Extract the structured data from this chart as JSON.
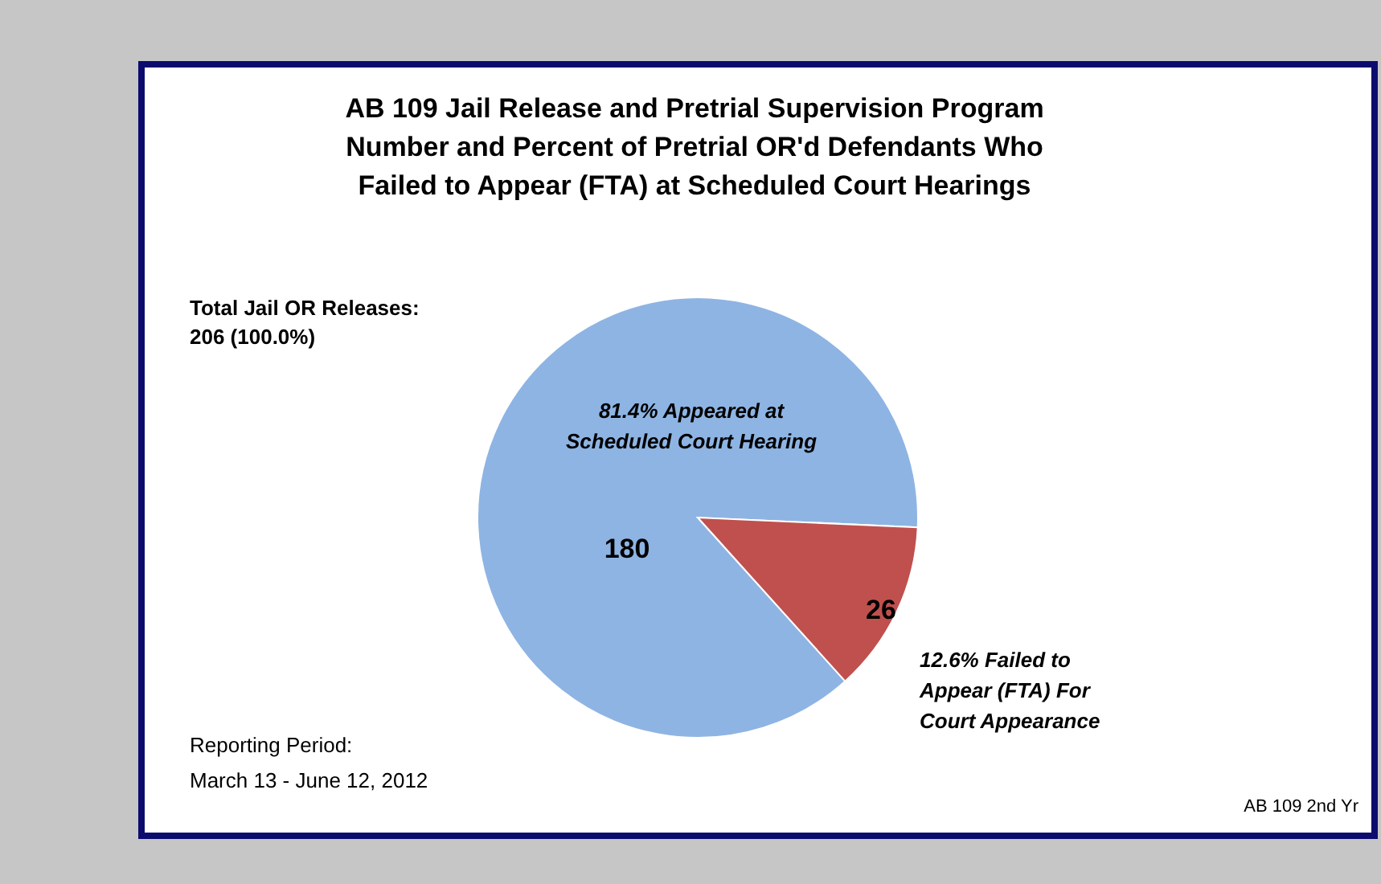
{
  "chart_data": {
    "type": "pie",
    "title": [
      "AB 109 Jail Release and Pretrial Supervision Program",
      "Number and Percent of Pretrial OR'd Defendants Who",
      "Failed  to Appear (FTA) at Scheduled Court Hearings"
    ],
    "categories": [
      "81.4% Appeared at Scheduled Court Hearing",
      "12.6% Failed to Appear (FTA)  For Court Appearance"
    ],
    "values": [
      180,
      26
    ],
    "colors": [
      "#8eb4e3",
      "#c0504d"
    ],
    "data_labels": true,
    "annotations": [
      "Total  Jail OR Releases: 206 (100.0%)",
      "Reporting Period: March 13 - June 12, 2012",
      "AB 109 2nd Yr"
    ]
  }
}
